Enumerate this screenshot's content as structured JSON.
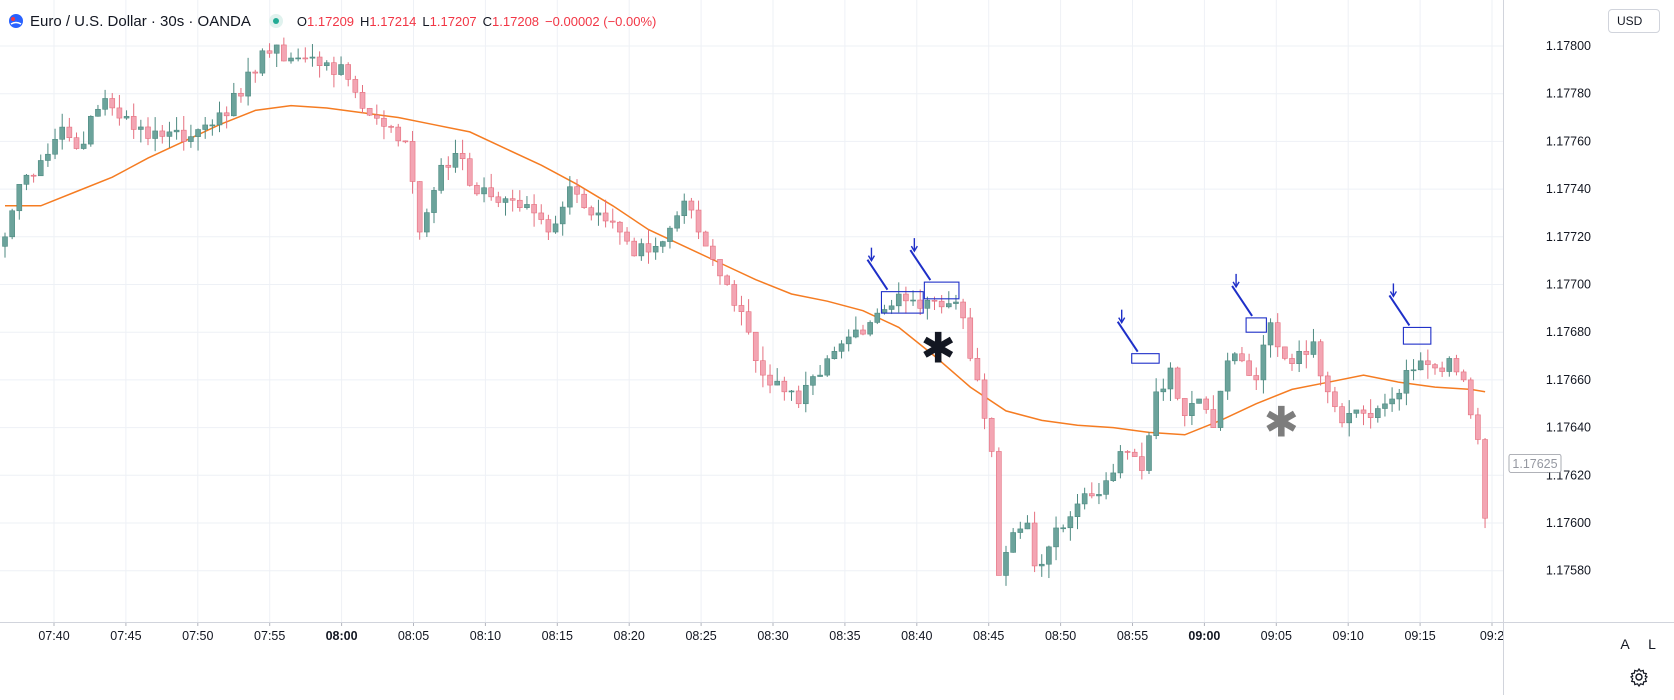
{
  "header": {
    "symbol": "Euro / U.S. Dollar · 30s · OANDA",
    "ohlc": [
      {
        "k": "O",
        "v": "1.17209"
      },
      {
        "k": "H",
        "v": "1.17214"
      },
      {
        "k": "L",
        "v": "1.17207"
      },
      {
        "k": "C",
        "v": "1.17208"
      },
      {
        "k": "",
        "v": "−0.00002 (−0.00%)"
      }
    ]
  },
  "currency_button": "USD",
  "scale_buttons": {
    "auto": "A",
    "log": "L"
  },
  "last_price_label": "1.17625",
  "colors": {
    "up": "#6ba39b",
    "down": "#f3a5b3",
    "ma": "#f57c22",
    "annotation": "#1e2fc8",
    "grid": "#eef1f6",
    "axis_text": "#131722"
  },
  "chart_data": {
    "type": "candlestick",
    "ylim": [
      1.17562,
      1.17808
    ],
    "y_ticks": [
      "1.17800",
      "1.17780",
      "1.17760",
      "1.17740",
      "1.17720",
      "1.17700",
      "1.17680",
      "1.17660",
      "1.17640",
      "1.17620",
      "1.17600",
      "1.17580"
    ],
    "x_tick_labels": [
      {
        "t": "07:40",
        "bold": false
      },
      {
        "t": "07:45",
        "bold": false
      },
      {
        "t": "07:50",
        "bold": false
      },
      {
        "t": "07:55",
        "bold": false
      },
      {
        "t": "08:00",
        "bold": true
      },
      {
        "t": "08:05",
        "bold": false
      },
      {
        "t": "08:10",
        "bold": false
      },
      {
        "t": "08:15",
        "bold": false
      },
      {
        "t": "08:20",
        "bold": false
      },
      {
        "t": "08:25",
        "bold": false
      },
      {
        "t": "08:30",
        "bold": false
      },
      {
        "t": "08:35",
        "bold": false
      },
      {
        "t": "08:40",
        "bold": false
      },
      {
        "t": "08:45",
        "bold": false
      },
      {
        "t": "08:50",
        "bold": false
      },
      {
        "t": "08:55",
        "bold": false
      },
      {
        "t": "09:00",
        "bold": true
      },
      {
        "t": "09:05",
        "bold": false
      },
      {
        "t": "09:10",
        "bold": false
      },
      {
        "t": "09:15",
        "bold": false
      },
      {
        "t": "09:2",
        "bold": false
      }
    ],
    "close_keypoints": [
      [
        0,
        1.1772
      ],
      [
        2,
        1.17742
      ],
      [
        5,
        1.17752
      ],
      [
        8,
        1.17766
      ],
      [
        10,
        1.17757
      ],
      [
        14,
        1.17778
      ],
      [
        18,
        1.17765
      ],
      [
        23,
        1.17764
      ],
      [
        26,
        1.17762
      ],
      [
        30,
        1.17772
      ],
      [
        33,
        1.17779
      ],
      [
        36,
        1.17798
      ],
      [
        41,
        1.17795
      ],
      [
        45,
        1.17793
      ],
      [
        48,
        1.17786
      ],
      [
        51,
        1.17771
      ],
      [
        54,
        1.17766
      ],
      [
        56,
        1.1776
      ],
      [
        58,
        1.17722
      ],
      [
        61,
        1.1775
      ],
      [
        63,
        1.17755
      ],
      [
        66,
        1.17738
      ],
      [
        70,
        1.17736
      ],
      [
        74,
        1.1773
      ],
      [
        76,
        1.17722
      ],
      [
        79,
        1.17741
      ],
      [
        83,
        1.1773
      ],
      [
        86,
        1.17722
      ],
      [
        88,
        1.17712
      ],
      [
        92,
        1.17718
      ],
      [
        95,
        1.17735
      ],
      [
        97,
        1.17722
      ],
      [
        101,
        1.177
      ],
      [
        104,
        1.1768
      ],
      [
        106,
        1.17662
      ],
      [
        109,
        1.17655
      ],
      [
        111,
        1.1765
      ],
      [
        114,
        1.17662
      ],
      [
        118,
        1.17678
      ],
      [
        122,
        1.17688
      ],
      [
        125,
        1.17696
      ],
      [
        128,
        1.1769
      ],
      [
        130,
        1.17693
      ],
      [
        132,
        1.17692
      ],
      [
        134,
        1.17686
      ],
      [
        136,
        1.1766
      ],
      [
        138,
        1.1763
      ],
      [
        139,
        1.17578
      ],
      [
        141,
        1.17596
      ],
      [
        143,
        1.176
      ],
      [
        144,
        1.17582
      ],
      [
        146,
        1.1759
      ],
      [
        148,
        1.17598
      ],
      [
        150,
        1.17608
      ],
      [
        153,
        1.17612
      ],
      [
        156,
        1.1763
      ],
      [
        159,
        1.17622
      ],
      [
        161,
        1.17655
      ],
      [
        163,
        1.17665
      ],
      [
        165,
        1.17645
      ],
      [
        167,
        1.17652
      ],
      [
        169,
        1.1764
      ],
      [
        171,
        1.17668
      ],
      [
        173,
        1.17668
      ],
      [
        175,
        1.1766
      ],
      [
        177,
        1.17684
      ],
      [
        179,
        1.17669
      ],
      [
        181,
        1.17672
      ],
      [
        183,
        1.17676
      ],
      [
        185,
        1.17655
      ],
      [
        187,
        1.17642
      ],
      [
        190,
        1.17646
      ],
      [
        192,
        1.17648
      ],
      [
        194,
        1.17652
      ],
      [
        196,
        1.17664
      ],
      [
        198,
        1.17668
      ],
      [
        200,
        1.17665
      ],
      [
        202,
        1.17669
      ],
      [
        204,
        1.1766
      ],
      [
        206,
        1.17635
      ],
      [
        207,
        1.17602
      ]
    ],
    "ma_points": [
      [
        0,
        1.17733
      ],
      [
        5,
        1.17733
      ],
      [
        10,
        1.17739
      ],
      [
        15,
        1.17745
      ],
      [
        20,
        1.17753
      ],
      [
        25,
        1.1776
      ],
      [
        30,
        1.17767
      ],
      [
        35,
        1.17773
      ],
      [
        40,
        1.17775
      ],
      [
        45,
        1.17774
      ],
      [
        50,
        1.17772
      ],
      [
        55,
        1.1777
      ],
      [
        60,
        1.17767
      ],
      [
        65,
        1.17764
      ],
      [
        70,
        1.17757
      ],
      [
        75,
        1.1775
      ],
      [
        80,
        1.17742
      ],
      [
        85,
        1.17733
      ],
      [
        90,
        1.17723
      ],
      [
        95,
        1.17716
      ],
      [
        100,
        1.17709
      ],
      [
        105,
        1.17702
      ],
      [
        110,
        1.17696
      ],
      [
        115,
        1.17693
      ],
      [
        120,
        1.17689
      ],
      [
        125,
        1.17682
      ],
      [
        130,
        1.1767
      ],
      [
        135,
        1.17657
      ],
      [
        140,
        1.17647
      ],
      [
        145,
        1.17643
      ],
      [
        150,
        1.17641
      ],
      [
        155,
        1.1764
      ],
      [
        160,
        1.17638
      ],
      [
        165,
        1.17637
      ],
      [
        170,
        1.17643
      ],
      [
        175,
        1.1765
      ],
      [
        180,
        1.17656
      ],
      [
        185,
        1.17659
      ],
      [
        190,
        1.17662
      ],
      [
        195,
        1.17659
      ],
      [
        200,
        1.17657
      ],
      [
        205,
        1.17656
      ],
      [
        207,
        1.17655
      ]
    ],
    "annotations": {
      "boxes": [
        [
          123,
          128,
          1.17697,
          1.17688
        ],
        [
          129,
          133,
          1.17701,
          1.17694
        ],
        [
          158,
          161,
          1.17671,
          1.17667
        ],
        [
          174,
          176,
          1.17686,
          1.1768
        ],
        [
          196,
          199,
          1.17682,
          1.17675
        ]
      ],
      "asterisks": [
        {
          "i": 130.5,
          "y": 1.17677,
          "color": "#131722",
          "size": 42
        },
        {
          "i": 178.5,
          "y": 1.17646,
          "color": "#7d7d7d",
          "size": 42
        }
      ]
    }
  }
}
